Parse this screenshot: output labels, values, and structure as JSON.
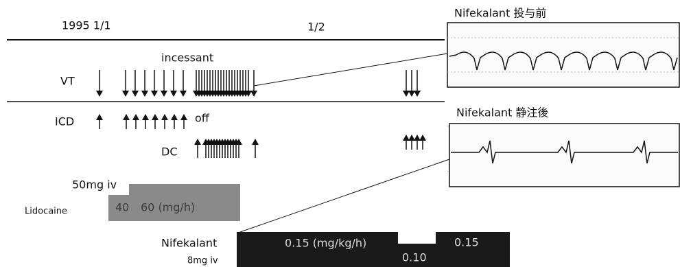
{
  "timeline": {
    "date_start": "1995  1/1",
    "date_mid": "1/2"
  },
  "rows": {
    "vt": "VT",
    "vt_note": "incessant",
    "icd": "ICD",
    "icd_note": "off",
    "dc": "DC"
  },
  "lidocaine": {
    "name": "Lidocaine",
    "bolus": "50mg iv",
    "rate1": "40",
    "rate2": "60 (mg/h)"
  },
  "nifekalant": {
    "name": "Nifekalant",
    "bolus": "8mg iv",
    "rate1": "0.15 (mg/kg/h)",
    "rate2": "0.10",
    "rate3": "0.15"
  },
  "ecg": {
    "before": "Nifekalant 投与前",
    "after": "Nifekalant 静注後"
  }
}
